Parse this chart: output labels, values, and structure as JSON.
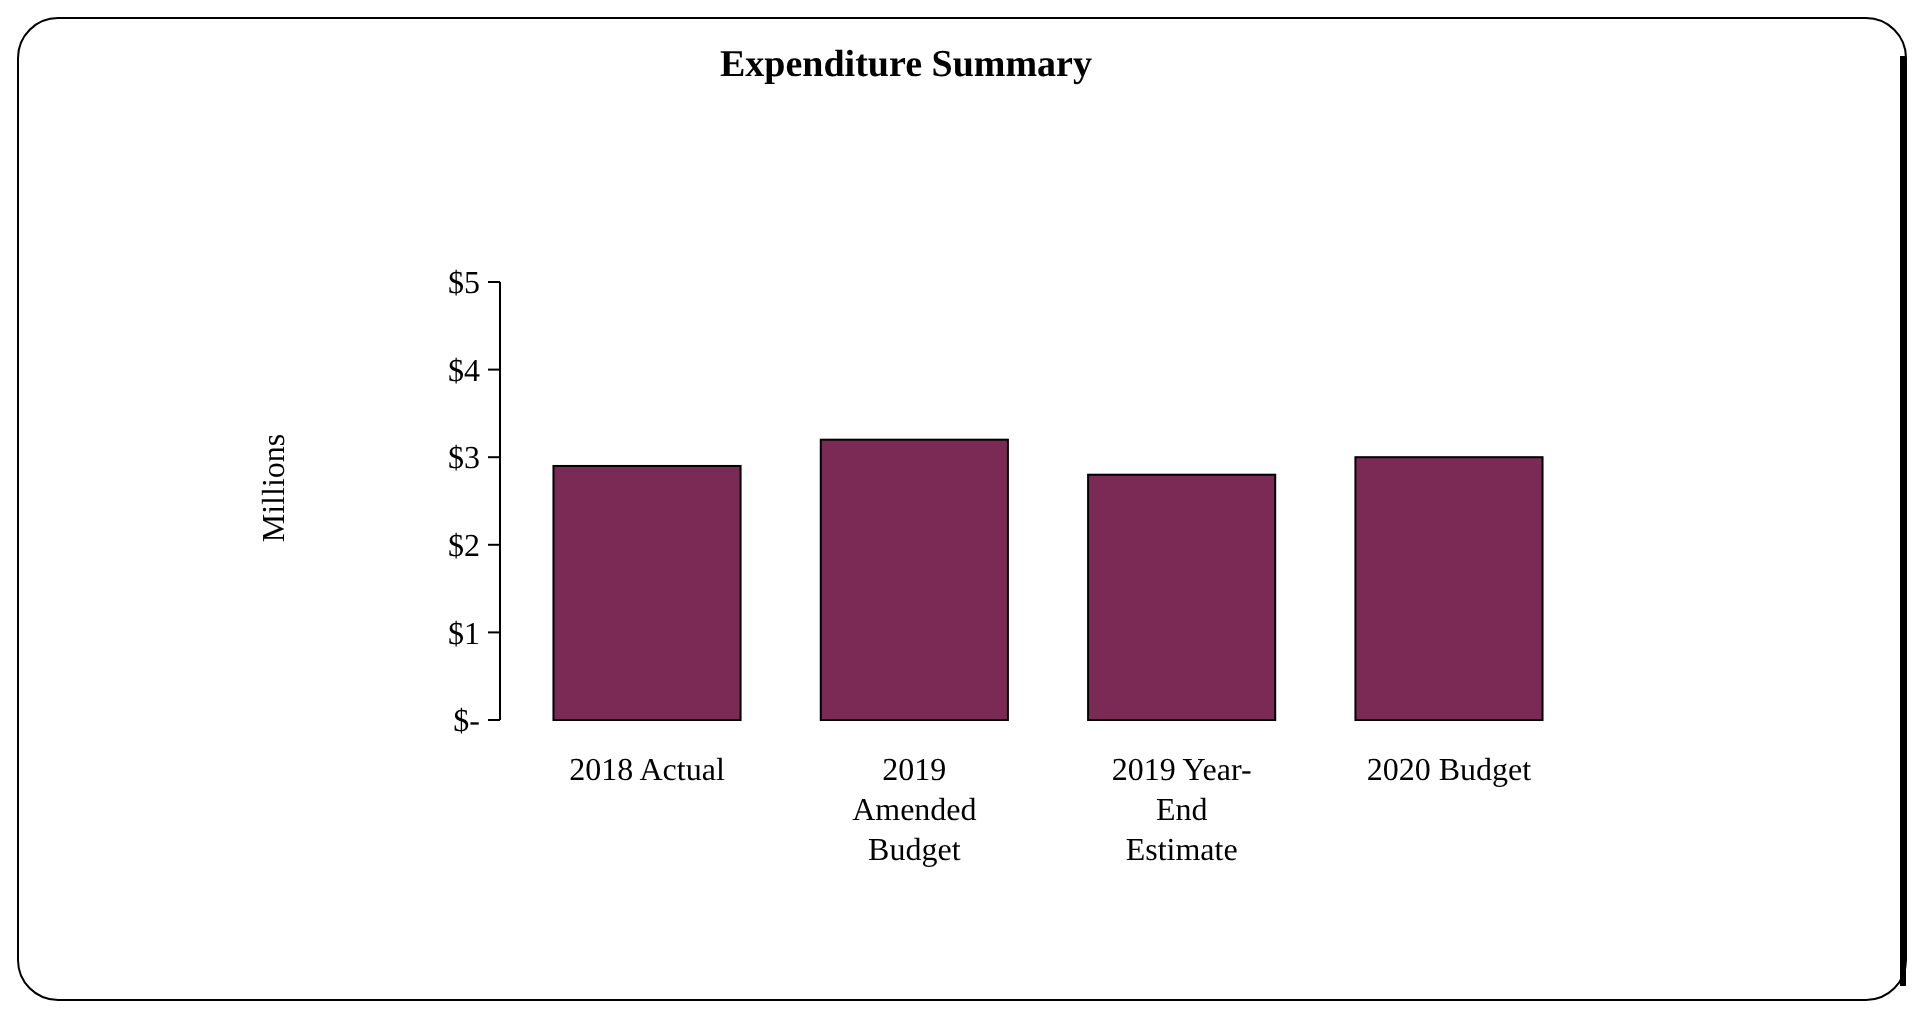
{
  "chart_data": {
    "type": "bar",
    "title": "Expenditure Summary",
    "ylabel": "Millions",
    "categories": [
      "2018 Actual",
      "2019 Amended Budget",
      "2019 Year-End Estimate",
      "2020 Budget"
    ],
    "values": [
      2.9,
      3.2,
      2.8,
      3.0
    ],
    "color": "#7a2a54",
    "ylim": [
      0,
      5
    ],
    "yticks": [
      {
        "value": 0,
        "label": "$-"
      },
      {
        "value": 1,
        "label": "$1"
      },
      {
        "value": 2,
        "label": "$2"
      },
      {
        "value": 3,
        "label": "$3"
      },
      {
        "value": 4,
        "label": "$4"
      },
      {
        "value": 5,
        "label": "$5"
      }
    ],
    "grid": false
  }
}
